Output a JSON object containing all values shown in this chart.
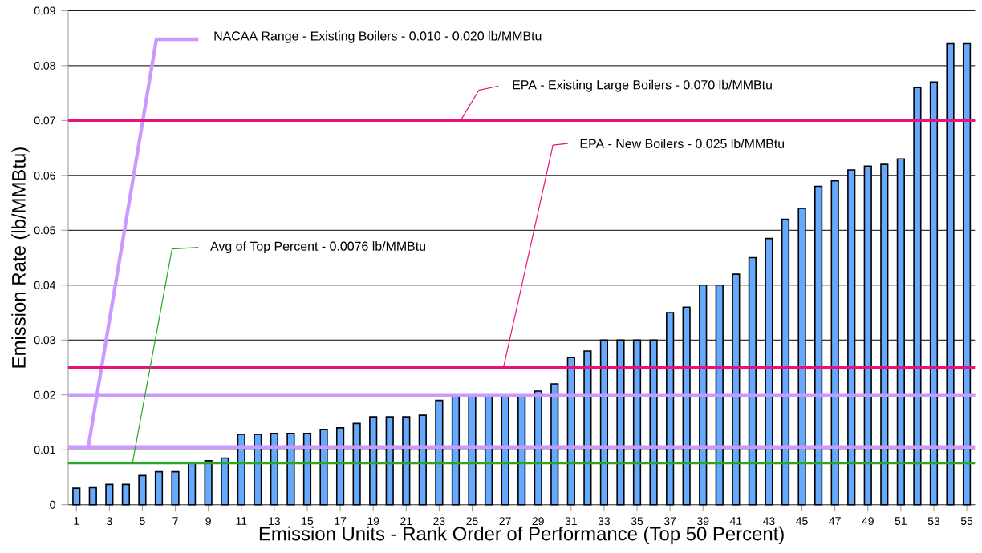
{
  "chart_data": {
    "type": "bar",
    "xlabel": "Emission Units - Rank Order of Performance (Top 50 Percent)",
    "ylabel": "Emission Rate (lb/MMBtu)",
    "categories": [
      "1",
      null,
      "3",
      null,
      "5",
      null,
      "7",
      null,
      "9",
      null,
      "11",
      null,
      "13",
      null,
      "15",
      null,
      "17",
      null,
      "19",
      null,
      "21",
      null,
      "23",
      null,
      "25",
      null,
      "27",
      null,
      "29",
      null,
      "31",
      null,
      "33",
      null,
      "35",
      null,
      "37",
      null,
      "39",
      null,
      "41",
      null,
      "43",
      null,
      "45",
      null,
      "47",
      null,
      "49",
      null,
      "51",
      null,
      "53",
      null,
      "55"
    ],
    "values": [
      0.003,
      0.0031,
      0.0037,
      0.0037,
      0.0053,
      0.006,
      0.006,
      0.0076,
      0.008,
      0.0085,
      0.0128,
      0.0128,
      0.013,
      0.013,
      0.013,
      0.0137,
      0.014,
      0.0148,
      0.016,
      0.016,
      0.016,
      0.0163,
      0.019,
      0.02,
      0.02,
      0.02,
      0.02,
      0.02,
      0.0207,
      0.022,
      0.0268,
      0.028,
      0.03,
      0.03,
      0.03,
      0.03,
      0.035,
      0.036,
      0.04,
      0.04,
      0.042,
      0.045,
      0.0485,
      0.052,
      0.054,
      0.058,
      0.059,
      0.061,
      0.0617,
      0.062,
      0.063,
      0.076,
      0.077,
      0.084,
      0.084
    ],
    "color": "#66aaff",
    "ylim": [
      0,
      0.09
    ],
    "yticks": [
      0,
      0.01,
      0.02,
      0.03,
      0.04,
      0.05,
      0.06,
      0.07,
      0.08,
      0.09
    ],
    "grid": "y",
    "ref_lines": [
      {
        "axis": "y",
        "value": 0.0105,
        "label": "NACAA  Range - Existing Boilers - 0.010 - 0.020 lb/MMBtu",
        "color": "#cc99ff"
      },
      {
        "axis": "y",
        "value": 0.02,
        "color": "#cc99ff"
      },
      {
        "axis": "y",
        "value": 0.07,
        "label": "EPA - Existing Large Boilers - 0.070 lb/MMBtu",
        "color": "#e8127f"
      },
      {
        "axis": "y",
        "value": 0.025,
        "label": "EPA - New Boilers - 0.025 lb/MMBtu",
        "color": "#e8127f"
      },
      {
        "axis": "y",
        "value": 0.0076,
        "label": "Avg of Top Percent - 0.0076 lb/MMBtu",
        "color": "#22aa22"
      }
    ]
  }
}
